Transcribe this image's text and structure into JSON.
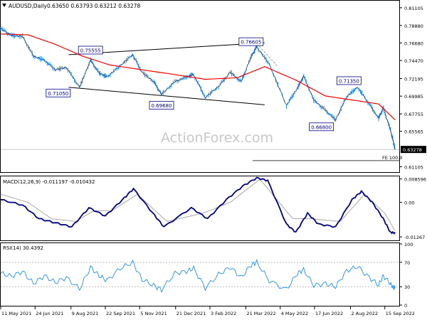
{
  "header": {
    "symbol": "AUDUSD,Daily",
    "ohlc": "0.63650 0.63793 0.63212 0.63278"
  },
  "watermark": "ActionForex.com",
  "chart_data": [
    {
      "type": "candlestick",
      "name": "AUDUSD,Daily",
      "y_ticks": [
        "0.81105",
        "0.78880",
        "0.76680",
        "0.74470",
        "0.72195",
        "0.69985",
        "0.67755",
        "0.65565",
        "0.61105"
      ],
      "ylim": [
        0.6052,
        0.819
      ],
      "current_price": "0.63278",
      "current_price_value": 0.63278,
      "fe_label": "FE 100.0",
      "fe_value": 0.6187,
      "annotations": [
        {
          "label": "0.75555",
          "value": 0.7555,
          "date": "2021-09-03"
        },
        {
          "label": "0.76605",
          "value": 0.7661,
          "date": "2022-04-04"
        },
        {
          "label": "0.71050",
          "value": 0.7105,
          "date": "2021-08-20"
        },
        {
          "label": "0.69680",
          "value": 0.6968,
          "date": "2021-12-03"
        },
        {
          "label": "0.71350",
          "value": 0.7135,
          "date": "2022-08-11"
        },
        {
          "label": "0.66800",
          "value": 0.668,
          "date": "2022-07-14"
        }
      ],
      "channel": [
        {
          "from": {
            "date": "2021-08-06",
            "value": 0.752
          },
          "to": {
            "date": "2022-04-14",
            "value": 0.767
          }
        },
        {
          "from": {
            "date": "2021-08-06",
            "value": 0.711
          },
          "to": {
            "date": "2022-04-14",
            "value": 0.689
          }
        }
      ],
      "moving_average_color": "#ff0000",
      "price_color": "#1e90ff",
      "close_path": [
        {
          "date": "2021-05-11",
          "value": 0.785
        },
        {
          "date": "2021-05-25",
          "value": 0.776
        },
        {
          "date": "2021-06-08",
          "value": 0.775
        },
        {
          "date": "2021-06-22",
          "value": 0.75
        },
        {
          "date": "2021-07-06",
          "value": 0.745
        },
        {
          "date": "2021-07-20",
          "value": 0.733
        },
        {
          "date": "2021-08-03",
          "value": 0.736
        },
        {
          "date": "2021-08-20",
          "value": 0.711
        },
        {
          "date": "2021-09-03",
          "value": 0.745
        },
        {
          "date": "2021-09-14",
          "value": 0.729
        },
        {
          "date": "2021-09-24",
          "value": 0.724
        },
        {
          "date": "2021-10-11",
          "value": 0.738
        },
        {
          "date": "2021-10-27",
          "value": 0.752
        },
        {
          "date": "2021-11-08",
          "value": 0.73
        },
        {
          "date": "2021-11-23",
          "value": 0.718
        },
        {
          "date": "2021-12-03",
          "value": 0.702
        },
        {
          "date": "2021-12-20",
          "value": 0.718
        },
        {
          "date": "2022-01-04",
          "value": 0.724
        },
        {
          "date": "2022-01-13",
          "value": 0.727
        },
        {
          "date": "2022-01-28",
          "value": 0.698
        },
        {
          "date": "2022-02-14",
          "value": 0.712
        },
        {
          "date": "2022-03-01",
          "value": 0.73
        },
        {
          "date": "2022-03-15",
          "value": 0.718
        },
        {
          "date": "2022-03-28",
          "value": 0.75
        },
        {
          "date": "2022-04-04",
          "value": 0.762
        },
        {
          "date": "2022-04-20",
          "value": 0.74
        },
        {
          "date": "2022-05-12",
          "value": 0.688
        },
        {
          "date": "2022-05-26",
          "value": 0.71
        },
        {
          "date": "2022-06-03",
          "value": 0.725
        },
        {
          "date": "2022-06-16",
          "value": 0.695
        },
        {
          "date": "2022-07-01",
          "value": 0.682
        },
        {
          "date": "2022-07-14",
          "value": 0.67
        },
        {
          "date": "2022-07-28",
          "value": 0.699
        },
        {
          "date": "2022-08-11",
          "value": 0.711
        },
        {
          "date": "2022-08-26",
          "value": 0.69
        },
        {
          "date": "2022-09-07",
          "value": 0.672
        },
        {
          "date": "2022-09-13",
          "value": 0.685
        },
        {
          "date": "2022-09-22",
          "value": 0.658
        },
        {
          "date": "2022-09-26",
          "value": 0.642
        },
        {
          "date": "2022-09-28",
          "value": 0.6328
        }
      ],
      "moving_average_path": [
        {
          "date": "2021-05-11",
          "value": 0.778
        },
        {
          "date": "2021-06-15",
          "value": 0.777
        },
        {
          "date": "2021-07-20",
          "value": 0.765
        },
        {
          "date": "2021-08-24",
          "value": 0.75
        },
        {
          "date": "2021-09-28",
          "value": 0.739
        },
        {
          "date": "2021-11-08",
          "value": 0.733
        },
        {
          "date": "2021-12-20",
          "value": 0.727
        },
        {
          "date": "2022-01-28",
          "value": 0.721
        },
        {
          "date": "2022-03-10",
          "value": 0.723
        },
        {
          "date": "2022-04-14",
          "value": 0.737
        },
        {
          "date": "2022-05-24",
          "value": 0.72
        },
        {
          "date": "2022-07-01",
          "value": 0.7
        },
        {
          "date": "2022-08-11",
          "value": 0.694
        },
        {
          "date": "2022-09-07",
          "value": 0.69
        },
        {
          "date": "2022-09-28",
          "value": 0.67
        }
      ]
    },
    {
      "type": "line",
      "name": "MACD(12,26,9)",
      "header": "MACD(12,26,9) -0.011197 -0.010432",
      "y_ticks": [
        "0.008596",
        "0.00",
        "-0.01267"
      ],
      "ylim": [
        -0.0137,
        0.0093
      ],
      "macd_color": "#00008b",
      "signal_color": "#a9a9a9",
      "macd_path": [
        {
          "date": "2021-05-11",
          "value": 0.001
        },
        {
          "date": "2021-06-08",
          "value": -0.001
        },
        {
          "date": "2021-06-29",
          "value": -0.006
        },
        {
          "date": "2021-07-20",
          "value": -0.0075
        },
        {
          "date": "2021-08-10",
          "value": -0.009
        },
        {
          "date": "2021-09-01",
          "value": -0.002
        },
        {
          "date": "2021-09-22",
          "value": -0.005
        },
        {
          "date": "2021-10-14",
          "value": 0.001
        },
        {
          "date": "2021-10-28",
          "value": 0.005
        },
        {
          "date": "2021-11-22",
          "value": -0.004
        },
        {
          "date": "2021-12-06",
          "value": -0.009
        },
        {
          "date": "2022-01-10",
          "value": -0.002
        },
        {
          "date": "2022-01-31",
          "value": -0.006
        },
        {
          "date": "2022-02-24",
          "value": 0.001
        },
        {
          "date": "2022-03-17",
          "value": 0.006
        },
        {
          "date": "2022-04-04",
          "value": 0.009
        },
        {
          "date": "2022-04-18",
          "value": 0.008
        },
        {
          "date": "2022-05-12",
          "value": -0.008
        },
        {
          "date": "2022-05-24",
          "value": -0.011
        },
        {
          "date": "2022-06-08",
          "value": -0.004
        },
        {
          "date": "2022-06-22",
          "value": -0.008
        },
        {
          "date": "2022-07-14",
          "value": -0.009
        },
        {
          "date": "2022-08-04",
          "value": 0.001
        },
        {
          "date": "2022-08-16",
          "value": 0.004
        },
        {
          "date": "2022-08-30",
          "value": 0.0
        },
        {
          "date": "2022-09-13",
          "value": -0.006
        },
        {
          "date": "2022-09-22",
          "value": -0.011
        },
        {
          "date": "2022-09-28",
          "value": -0.0112
        }
      ],
      "signal_path": [
        {
          "date": "2021-05-11",
          "value": 0.003
        },
        {
          "date": "2021-06-15",
          "value": 0.0
        },
        {
          "date": "2021-07-15",
          "value": -0.006
        },
        {
          "date": "2021-08-15",
          "value": -0.007
        },
        {
          "date": "2021-09-08",
          "value": -0.003
        },
        {
          "date": "2021-10-01",
          "value": -0.003
        },
        {
          "date": "2021-11-02",
          "value": 0.003
        },
        {
          "date": "2021-12-10",
          "value": -0.007
        },
        {
          "date": "2022-01-25",
          "value": -0.004
        },
        {
          "date": "2022-03-01",
          "value": 0.0
        },
        {
          "date": "2022-04-08",
          "value": 0.0085
        },
        {
          "date": "2022-05-20",
          "value": -0.006
        },
        {
          "date": "2022-06-10",
          "value": -0.006
        },
        {
          "date": "2022-07-20",
          "value": -0.007
        },
        {
          "date": "2022-08-20",
          "value": 0.003
        },
        {
          "date": "2022-09-15",
          "value": -0.004
        },
        {
          "date": "2022-09-28",
          "value": -0.0104
        }
      ]
    },
    {
      "type": "line",
      "name": "RSI(14)",
      "header": "RSI(14) 30.4392",
      "y_ticks": [
        "100",
        "70",
        "30",
        "0"
      ],
      "ylim": [
        0,
        100
      ],
      "rsi_color": "#1e90ff",
      "rsi_path": [
        {
          "date": "2021-05-11",
          "value": 52
        },
        {
          "date": "2021-05-25",
          "value": 47
        },
        {
          "date": "2021-06-08",
          "value": 55
        },
        {
          "date": "2021-06-22",
          "value": 35
        },
        {
          "date": "2021-07-06",
          "value": 48
        },
        {
          "date": "2021-07-20",
          "value": 37
        },
        {
          "date": "2021-08-03",
          "value": 45
        },
        {
          "date": "2021-08-20",
          "value": 26
        },
        {
          "date": "2021-09-03",
          "value": 62
        },
        {
          "date": "2021-09-14",
          "value": 48
        },
        {
          "date": "2021-09-24",
          "value": 40
        },
        {
          "date": "2021-10-11",
          "value": 60
        },
        {
          "date": "2021-10-27",
          "value": 70
        },
        {
          "date": "2021-11-08",
          "value": 42
        },
        {
          "date": "2021-11-23",
          "value": 32
        },
        {
          "date": "2021-12-03",
          "value": 25
        },
        {
          "date": "2021-12-20",
          "value": 52
        },
        {
          "date": "2022-01-04",
          "value": 55
        },
        {
          "date": "2022-01-13",
          "value": 60
        },
        {
          "date": "2022-01-28",
          "value": 28
        },
        {
          "date": "2022-02-14",
          "value": 50
        },
        {
          "date": "2022-03-01",
          "value": 62
        },
        {
          "date": "2022-03-15",
          "value": 45
        },
        {
          "date": "2022-03-28",
          "value": 66
        },
        {
          "date": "2022-04-04",
          "value": 70
        },
        {
          "date": "2022-04-20",
          "value": 40
        },
        {
          "date": "2022-05-12",
          "value": 25
        },
        {
          "date": "2022-05-26",
          "value": 52
        },
        {
          "date": "2022-06-03",
          "value": 58
        },
        {
          "date": "2022-06-16",
          "value": 32
        },
        {
          "date": "2022-07-01",
          "value": 35
        },
        {
          "date": "2022-07-14",
          "value": 30
        },
        {
          "date": "2022-07-28",
          "value": 56
        },
        {
          "date": "2022-08-11",
          "value": 63
        },
        {
          "date": "2022-08-26",
          "value": 45
        },
        {
          "date": "2022-09-07",
          "value": 33
        },
        {
          "date": "2022-09-13",
          "value": 48
        },
        {
          "date": "2022-09-22",
          "value": 35
        },
        {
          "date": "2022-09-26",
          "value": 28
        },
        {
          "date": "2022-09-28",
          "value": 30.4392
        }
      ]
    }
  ],
  "x_axis": {
    "domain": [
      "2021-05-11",
      "2022-09-28"
    ],
    "ticks": [
      {
        "label": "11 May 2021",
        "date": "2021-05-11"
      },
      {
        "label": "24 Jun 2021",
        "date": "2021-06-24"
      },
      {
        "label": "9 Aug 2021",
        "date": "2021-08-09"
      },
      {
        "label": "22 Sep 2021",
        "date": "2021-09-22"
      },
      {
        "label": "5 Nov 2021",
        "date": "2021-11-05"
      },
      {
        "label": "21 Dec 2021",
        "date": "2021-12-21"
      },
      {
        "label": "3 Feb 2022",
        "date": "2022-02-03"
      },
      {
        "label": "21 Mar 2022",
        "date": "2022-03-21"
      },
      {
        "label": "4 May 2022",
        "date": "2022-05-04"
      },
      {
        "label": "17 Jun 2022",
        "date": "2022-06-17"
      },
      {
        "label": "2 Aug 2022",
        "date": "2022-08-02"
      },
      {
        "label": "15 Sep 2022",
        "date": "2022-09-15"
      }
    ]
  }
}
